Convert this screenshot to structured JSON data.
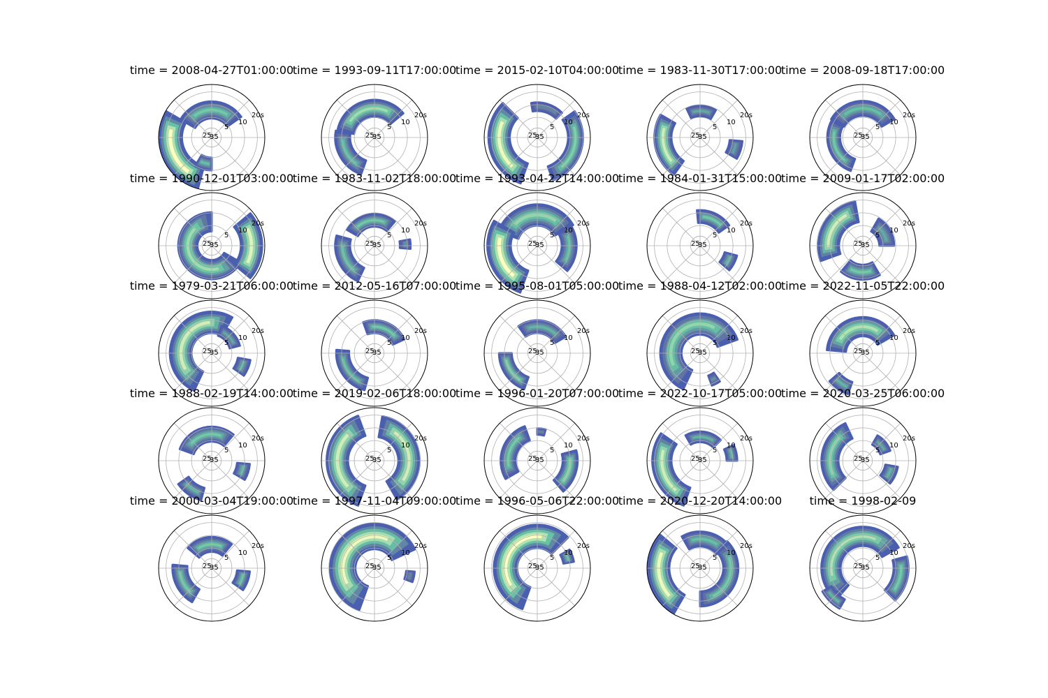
{
  "figure": {
    "rows": 5,
    "cols": 5
  },
  "chart_data": {
    "type": "heatmap",
    "projection": "polar",
    "colormap": "Spectral_r (blue to yellow)",
    "colors": {
      "low": "#5e4fa2",
      "mid": "#66c2a5",
      "high": "#ffffbf",
      "edge": "#4a5fb0"
    },
    "r_tick_labels": [
      "25",
      "5",
      "10",
      "20s"
    ],
    "r_tick_label_extra": "35",
    "grid": true,
    "panels": [
      {
        "title": "time = 2008-04-27T01:00:00",
        "blobs": [
          {
            "a0": 35,
            "a1": 150,
            "r": 0.52,
            "w": 0.16,
            "i": 0.55
          },
          {
            "a0": 150,
            "a1": 255,
            "r": 0.78,
            "w": 0.22,
            "i": 1.0
          },
          {
            "a0": 240,
            "a1": 270,
            "r": 0.5,
            "w": 0.12,
            "i": 0.5
          }
        ]
      },
      {
        "title": "time = 1993-09-11T17:00:00",
        "blobs": [
          {
            "a0": 40,
            "a1": 170,
            "r": 0.55,
            "w": 0.16,
            "i": 0.7
          },
          {
            "a0": 170,
            "a1": 250,
            "r": 0.6,
            "w": 0.14,
            "i": 0.5
          }
        ]
      },
      {
        "title": "time = 2015-02-10T04:00:00",
        "blobs": [
          {
            "a0": 135,
            "a1": 250,
            "r": 0.72,
            "w": 0.2,
            "i": 0.95
          },
          {
            "a0": 45,
            "a1": 100,
            "r": 0.58,
            "w": 0.08,
            "i": 0.3
          },
          {
            "a0": -70,
            "a1": 35,
            "r": 0.72,
            "w": 0.14,
            "i": 0.6
          }
        ]
      },
      {
        "title": "time = 1983-11-30T17:00:00",
        "blobs": [
          {
            "a0": 60,
            "a1": 115,
            "r": 0.5,
            "w": 0.1,
            "i": 0.4
          },
          {
            "a0": 150,
            "a1": 235,
            "r": 0.7,
            "w": 0.16,
            "i": 0.85
          },
          {
            "a0": -30,
            "a1": -5,
            "r": 0.68,
            "w": 0.12,
            "i": 0.35
          }
        ]
      },
      {
        "title": "time = 2008-09-18T17:00:00",
        "blobs": [
          {
            "a0": 30,
            "a1": 150,
            "r": 0.55,
            "w": 0.14,
            "i": 0.5
          },
          {
            "a0": 150,
            "a1": 250,
            "r": 0.55,
            "w": 0.12,
            "i": 0.55
          }
        ]
      },
      {
        "title": "time = 1990-12-01T03:00:00",
        "blobs": [
          {
            "a0": 90,
            "a1": 330,
            "r": 0.45,
            "w": 0.18,
            "i": 0.7
          },
          {
            "a0": -40,
            "a1": 40,
            "r": 0.75,
            "w": 0.2,
            "i": 0.9
          }
        ]
      },
      {
        "title": "time = 1983-11-02T18:00:00",
        "blobs": [
          {
            "a0": 50,
            "a1": 150,
            "r": 0.48,
            "w": 0.12,
            "i": 0.55
          },
          {
            "a0": 165,
            "a1": 245,
            "r": 0.6,
            "w": 0.14,
            "i": 0.5
          },
          {
            "a0": -5,
            "a1": 10,
            "r": 0.58,
            "w": 0.1,
            "i": 0.3
          }
        ]
      },
      {
        "title": "time = 1993-04-22T14:00:00",
        "blobs": [
          {
            "a0": 30,
            "a1": 160,
            "r": 0.58,
            "w": 0.2,
            "i": 0.65
          },
          {
            "a0": 150,
            "a1": 250,
            "r": 0.72,
            "w": 0.22,
            "i": 1.0
          },
          {
            "a0": -40,
            "a1": 30,
            "r": 0.6,
            "w": 0.14,
            "i": 0.5
          }
        ]
      },
      {
        "title": "time = 1984-01-31T15:00:00",
        "blobs": [
          {
            "a0": 35,
            "a1": 95,
            "r": 0.55,
            "w": 0.12,
            "i": 0.55
          },
          {
            "a0": -40,
            "a1": -15,
            "r": 0.6,
            "w": 0.12,
            "i": 0.45
          }
        ]
      },
      {
        "title": "time = 2009-01-17T02:00:00",
        "blobs": [
          {
            "a0": 100,
            "a1": 200,
            "r": 0.65,
            "w": 0.2,
            "i": 0.85
          },
          {
            "a0": 0,
            "a1": 60,
            "r": 0.45,
            "w": 0.14,
            "i": 0.4
          },
          {
            "a0": 230,
            "a1": 300,
            "r": 0.5,
            "w": 0.14,
            "i": 0.55
          }
        ]
      },
      {
        "title": "time = 1979-03-21T06:00:00",
        "blobs": [
          {
            "a0": 60,
            "a1": 245,
            "r": 0.58,
            "w": 0.2,
            "i": 0.85
          },
          {
            "a0": 15,
            "a1": 70,
            "r": 0.45,
            "w": 0.1,
            "i": 0.4
          },
          {
            "a0": -35,
            "a1": -10,
            "r": 0.62,
            "w": 0.12,
            "i": 0.45
          }
        ]
      },
      {
        "title": "time = 2012-05-16T07:00:00",
        "blobs": [
          {
            "a0": 25,
            "a1": 110,
            "r": 0.5,
            "w": 0.12,
            "i": 0.55
          },
          {
            "a0": 175,
            "a1": 255,
            "r": 0.6,
            "w": 0.12,
            "i": 0.5
          }
        ]
      },
      {
        "title": "time = 1995-08-01T05:00:00",
        "blobs": [
          {
            "a0": 30,
            "a1": 125,
            "r": 0.5,
            "w": 0.12,
            "i": 0.45
          },
          {
            "a0": 180,
            "a1": 250,
            "r": 0.6,
            "w": 0.12,
            "i": 0.6
          }
        ]
      },
      {
        "title": "time = 1988-04-12T02:00:00",
        "blobs": [
          {
            "a0": 20,
            "a1": 245,
            "r": 0.55,
            "w": 0.2,
            "i": 0.65
          },
          {
            "a0": -70,
            "a1": -55,
            "r": 0.55,
            "w": 0.1,
            "i": 0.3
          }
        ]
      },
      {
        "title": "time = 2022-11-05T22:00:00",
        "blobs": [
          {
            "a0": 30,
            "a1": 175,
            "r": 0.5,
            "w": 0.18,
            "i": 0.75
          },
          {
            "a0": 220,
            "a1": 250,
            "r": 0.7,
            "w": 0.12,
            "i": 0.45
          }
        ]
      },
      {
        "title": "time = 1988-02-19T14:00:00",
        "blobs": [
          {
            "a0": 50,
            "a1": 160,
            "r": 0.5,
            "w": 0.14,
            "i": 0.55
          },
          {
            "a0": 215,
            "a1": 255,
            "r": 0.65,
            "w": 0.12,
            "i": 0.45
          },
          {
            "a0": -30,
            "a1": -5,
            "r": 0.6,
            "w": 0.12,
            "i": 0.45
          }
        ]
      },
      {
        "title": "time = 2019-02-06T18:00:00",
        "blobs": [
          {
            "a0": 110,
            "a1": 250,
            "r": 0.7,
            "w": 0.2,
            "i": 0.85
          },
          {
            "a0": -60,
            "a1": 80,
            "r": 0.65,
            "w": 0.2,
            "i": 0.85
          }
        ]
      },
      {
        "title": "time = 1996-01-20T07:00:00",
        "blobs": [
          {
            "a0": 110,
            "a1": 210,
            "r": 0.55,
            "w": 0.14,
            "i": 0.55
          },
          {
            "a0": 75,
            "a1": 90,
            "r": 0.55,
            "w": 0.06,
            "i": 0.3
          },
          {
            "a0": -50,
            "a1": 15,
            "r": 0.62,
            "w": 0.14,
            "i": 0.65
          }
        ]
      },
      {
        "title": "time = 2022-10-17T05:00:00",
        "blobs": [
          {
            "a0": 145,
            "a1": 250,
            "r": 0.72,
            "w": 0.18,
            "i": 0.85
          },
          {
            "a0": 45,
            "a1": 120,
            "r": 0.45,
            "w": 0.1,
            "i": 0.45
          },
          {
            "a0": 0,
            "a1": 25,
            "r": 0.6,
            "w": 0.1,
            "i": 0.45
          }
        ]
      },
      {
        "title": "time = 2020-03-25T06:00:00",
        "blobs": [
          {
            "a0": 115,
            "a1": 225,
            "r": 0.62,
            "w": 0.16,
            "i": 0.65
          },
          {
            "a0": 20,
            "a1": 60,
            "r": 0.45,
            "w": 0.1,
            "i": 0.4
          },
          {
            "a0": -40,
            "a1": -10,
            "r": 0.55,
            "w": 0.12,
            "i": 0.45
          }
        ]
      },
      {
        "title": "time = 2000-03-04T19:00:00",
        "blobs": [
          {
            "a0": 50,
            "a1": 140,
            "r": 0.45,
            "w": 0.14,
            "i": 0.55
          },
          {
            "a0": 175,
            "a1": 240,
            "r": 0.6,
            "w": 0.14,
            "i": 0.55
          },
          {
            "a0": -35,
            "a1": -5,
            "r": 0.6,
            "w": 0.12,
            "i": 0.5
          }
        ]
      },
      {
        "title": "time = 1997-11-04T09:00:00",
        "blobs": [
          {
            "a0": 25,
            "a1": 250,
            "r": 0.6,
            "w": 0.24,
            "i": 0.95
          },
          {
            "a0": -20,
            "a1": -5,
            "r": 0.68,
            "w": 0.08,
            "i": 0.3
          }
        ]
      },
      {
        "title": "time = 1996-05-06T22:00:00",
        "blobs": [
          {
            "a0": 45,
            "a1": 250,
            "r": 0.6,
            "w": 0.22,
            "i": 1.0
          },
          {
            "a0": 10,
            "a1": 30,
            "r": 0.6,
            "w": 0.1,
            "i": 0.5
          }
        ]
      },
      {
        "title": "time = 2020-12-20T14:00:00",
        "blobs": [
          {
            "a0": 140,
            "a1": 240,
            "r": 0.78,
            "w": 0.2,
            "i": 0.95
          },
          {
            "a0": 40,
            "a1": 120,
            "r": 0.55,
            "w": 0.14,
            "i": 0.5
          },
          {
            "a0": -90,
            "a1": 45,
            "r": 0.58,
            "w": 0.14,
            "i": 0.55
          }
        ]
      },
      {
        "title": "time = 1998-02-09",
        "blobs": [
          {
            "a0": 30,
            "a1": 230,
            "r": 0.6,
            "w": 0.18,
            "i": 0.75
          },
          {
            "a0": 210,
            "a1": 240,
            "r": 0.78,
            "w": 0.1,
            "i": 0.45
          },
          {
            "a0": -45,
            "a1": 15,
            "r": 0.72,
            "w": 0.14,
            "i": 0.55
          }
        ]
      }
    ]
  }
}
